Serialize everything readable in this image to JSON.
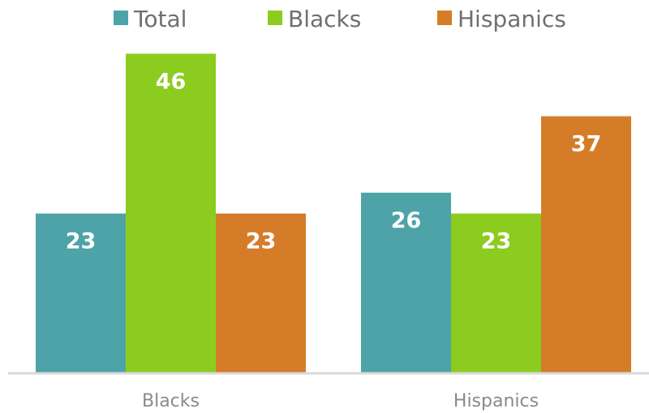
{
  "chart_data": {
    "type": "bar",
    "categories": [
      "Blacks",
      "Hispanics"
    ],
    "series": [
      {
        "name": "Total",
        "values": [
          23,
          26
        ],
        "color": "#4da3a8"
      },
      {
        "name": "Blacks",
        "values": [
          46,
          23
        ],
        "color": "#8ccc1f"
      },
      {
        "name": "Hispanics",
        "values": [
          23,
          37
        ],
        "color": "#d57c29"
      }
    ],
    "title": "",
    "xlabel": "",
    "ylabel": "",
    "ylim": [
      0,
      50
    ],
    "grid": false,
    "legend_position": "top",
    "data_labels": true,
    "axis_color": "#d9d9d9"
  }
}
